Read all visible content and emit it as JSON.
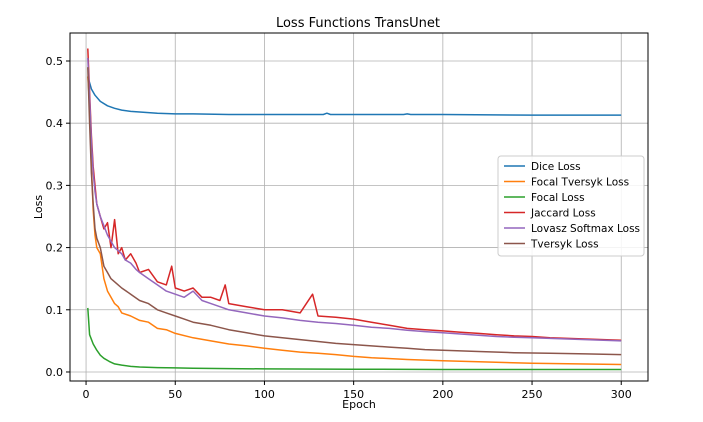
{
  "chart_data": {
    "type": "line",
    "title": "Loss Functions TransUnet",
    "xlabel": "Epoch",
    "ylabel": "Loss",
    "xlim": [
      -9,
      315
    ],
    "ylim": [
      -0.0145,
      0.545
    ],
    "xticks": [
      0,
      50,
      100,
      150,
      200,
      250,
      300
    ],
    "yticks": [
      0.0,
      0.1,
      0.2,
      0.3,
      0.4,
      0.5
    ],
    "ytick_labels": [
      "0.0",
      "0.1",
      "0.2",
      "0.3",
      "0.4",
      "0.5"
    ],
    "grid": true,
    "legend_position": "center-right",
    "series": [
      {
        "name": "Dice Loss",
        "color": "#1f77b4",
        "points": [
          [
            1,
            0.475
          ],
          [
            3,
            0.455
          ],
          [
            5,
            0.445
          ],
          [
            8,
            0.435
          ],
          [
            12,
            0.428
          ],
          [
            16,
            0.424
          ],
          [
            20,
            0.421
          ],
          [
            25,
            0.419
          ],
          [
            30,
            0.418
          ],
          [
            35,
            0.417
          ],
          [
            40,
            0.416
          ],
          [
            50,
            0.415
          ],
          [
            60,
            0.415
          ],
          [
            80,
            0.414
          ],
          [
            100,
            0.414
          ],
          [
            120,
            0.414
          ],
          [
            133,
            0.414
          ],
          [
            135,
            0.416
          ],
          [
            137,
            0.414
          ],
          [
            150,
            0.414
          ],
          [
            178,
            0.414
          ],
          [
            180,
            0.415
          ],
          [
            182,
            0.414
          ],
          [
            200,
            0.414
          ],
          [
            250,
            0.413
          ],
          [
            300,
            0.413
          ]
        ]
      },
      {
        "name": "Focal Tversyk Loss",
        "color": "#ff7f0e",
        "points": [
          [
            1,
            0.475
          ],
          [
            2,
            0.43
          ],
          [
            3,
            0.33
          ],
          [
            4,
            0.26
          ],
          [
            5,
            0.22
          ],
          [
            6,
            0.2
          ],
          [
            8,
            0.19
          ],
          [
            10,
            0.15
          ],
          [
            12,
            0.13
          ],
          [
            14,
            0.12
          ],
          [
            16,
            0.11
          ],
          [
            18,
            0.105
          ],
          [
            20,
            0.095
          ],
          [
            25,
            0.09
          ],
          [
            30,
            0.083
          ],
          [
            35,
            0.08
          ],
          [
            40,
            0.07
          ],
          [
            45,
            0.068
          ],
          [
            50,
            0.062
          ],
          [
            60,
            0.055
          ],
          [
            70,
            0.05
          ],
          [
            80,
            0.045
          ],
          [
            90,
            0.042
          ],
          [
            100,
            0.038
          ],
          [
            110,
            0.035
          ],
          [
            120,
            0.032
          ],
          [
            130,
            0.03
          ],
          [
            140,
            0.028
          ],
          [
            150,
            0.025
          ],
          [
            160,
            0.023
          ],
          [
            180,
            0.02
          ],
          [
            200,
            0.018
          ],
          [
            225,
            0.016
          ],
          [
            250,
            0.014
          ],
          [
            275,
            0.013
          ],
          [
            300,
            0.012
          ]
        ]
      },
      {
        "name": "Focal Loss",
        "color": "#2ca02c",
        "points": [
          [
            1,
            0.103
          ],
          [
            2,
            0.06
          ],
          [
            4,
            0.045
          ],
          [
            6,
            0.035
          ],
          [
            8,
            0.027
          ],
          [
            10,
            0.022
          ],
          [
            13,
            0.017
          ],
          [
            16,
            0.013
          ],
          [
            20,
            0.011
          ],
          [
            25,
            0.009
          ],
          [
            30,
            0.008
          ],
          [
            40,
            0.007
          ],
          [
            50,
            0.0065
          ],
          [
            60,
            0.006
          ],
          [
            80,
            0.0055
          ],
          [
            100,
            0.005
          ],
          [
            150,
            0.0045
          ],
          [
            200,
            0.004
          ],
          [
            250,
            0.004
          ],
          [
            300,
            0.004
          ]
        ]
      },
      {
        "name": "Jaccard Loss",
        "color": "#d62728",
        "points": [
          [
            1,
            0.52
          ],
          [
            2,
            0.45
          ],
          [
            3,
            0.38
          ],
          [
            4,
            0.33
          ],
          [
            5,
            0.3
          ],
          [
            6,
            0.27
          ],
          [
            8,
            0.25
          ],
          [
            10,
            0.23
          ],
          [
            12,
            0.24
          ],
          [
            14,
            0.2
          ],
          [
            16,
            0.245
          ],
          [
            18,
            0.19
          ],
          [
            20,
            0.2
          ],
          [
            22,
            0.18
          ],
          [
            25,
            0.19
          ],
          [
            28,
            0.175
          ],
          [
            30,
            0.16
          ],
          [
            35,
            0.165
          ],
          [
            40,
            0.145
          ],
          [
            45,
            0.14
          ],
          [
            48,
            0.17
          ],
          [
            50,
            0.135
          ],
          [
            55,
            0.13
          ],
          [
            60,
            0.135
          ],
          [
            65,
            0.12
          ],
          [
            70,
            0.12
          ],
          [
            75,
            0.115
          ],
          [
            78,
            0.14
          ],
          [
            80,
            0.11
          ],
          [
            90,
            0.105
          ],
          [
            100,
            0.1
          ],
          [
            110,
            0.1
          ],
          [
            120,
            0.095
          ],
          [
            127,
            0.125
          ],
          [
            130,
            0.09
          ],
          [
            140,
            0.088
          ],
          [
            150,
            0.085
          ],
          [
            160,
            0.08
          ],
          [
            170,
            0.075
          ],
          [
            180,
            0.07
          ],
          [
            190,
            0.068
          ],
          [
            200,
            0.066
          ],
          [
            210,
            0.064
          ],
          [
            220,
            0.062
          ],
          [
            230,
            0.06
          ],
          [
            240,
            0.058
          ],
          [
            250,
            0.057
          ],
          [
            260,
            0.055
          ],
          [
            270,
            0.054
          ],
          [
            280,
            0.053
          ],
          [
            290,
            0.052
          ],
          [
            300,
            0.051
          ]
        ]
      },
      {
        "name": "Lovasz Softmax Loss",
        "color": "#9467bd",
        "points": [
          [
            1,
            0.505
          ],
          [
            2,
            0.44
          ],
          [
            3,
            0.37
          ],
          [
            4,
            0.32
          ],
          [
            5,
            0.29
          ],
          [
            6,
            0.27
          ],
          [
            8,
            0.25
          ],
          [
            10,
            0.235
          ],
          [
            12,
            0.22
          ],
          [
            14,
            0.21
          ],
          [
            16,
            0.2
          ],
          [
            18,
            0.195
          ],
          [
            20,
            0.19
          ],
          [
            22,
            0.18
          ],
          [
            25,
            0.175
          ],
          [
            28,
            0.165
          ],
          [
            30,
            0.16
          ],
          [
            35,
            0.15
          ],
          [
            40,
            0.14
          ],
          [
            45,
            0.13
          ],
          [
            50,
            0.125
          ],
          [
            55,
            0.12
          ],
          [
            60,
            0.13
          ],
          [
            65,
            0.115
          ],
          [
            70,
            0.11
          ],
          [
            75,
            0.105
          ],
          [
            80,
            0.1
          ],
          [
            90,
            0.095
          ],
          [
            100,
            0.09
          ],
          [
            110,
            0.087
          ],
          [
            120,
            0.083
          ],
          [
            130,
            0.08
          ],
          [
            140,
            0.078
          ],
          [
            150,
            0.075
          ],
          [
            160,
            0.072
          ],
          [
            170,
            0.07
          ],
          [
            180,
            0.067
          ],
          [
            190,
            0.065
          ],
          [
            200,
            0.063
          ],
          [
            210,
            0.061
          ],
          [
            220,
            0.059
          ],
          [
            230,
            0.057
          ],
          [
            240,
            0.056
          ],
          [
            250,
            0.055
          ],
          [
            260,
            0.054
          ],
          [
            270,
            0.053
          ],
          [
            280,
            0.052
          ],
          [
            290,
            0.051
          ],
          [
            300,
            0.05
          ]
        ]
      },
      {
        "name": "Tversyk Loss",
        "color": "#8c564b",
        "points": [
          [
            1,
            0.49
          ],
          [
            2,
            0.4
          ],
          [
            3,
            0.32
          ],
          [
            4,
            0.27
          ],
          [
            5,
            0.23
          ],
          [
            6,
            0.215
          ],
          [
            8,
            0.2
          ],
          [
            10,
            0.17
          ],
          [
            12,
            0.16
          ],
          [
            14,
            0.15
          ],
          [
            16,
            0.145
          ],
          [
            18,
            0.14
          ],
          [
            20,
            0.135
          ],
          [
            25,
            0.125
          ],
          [
            30,
            0.115
          ],
          [
            35,
            0.11
          ],
          [
            40,
            0.1
          ],
          [
            45,
            0.095
          ],
          [
            50,
            0.09
          ],
          [
            55,
            0.085
          ],
          [
            60,
            0.08
          ],
          [
            70,
            0.075
          ],
          [
            80,
            0.068
          ],
          [
            90,
            0.063
          ],
          [
            100,
            0.058
          ],
          [
            110,
            0.055
          ],
          [
            120,
            0.052
          ],
          [
            130,
            0.049
          ],
          [
            140,
            0.046
          ],
          [
            150,
            0.044
          ],
          [
            160,
            0.042
          ],
          [
            170,
            0.04
          ],
          [
            180,
            0.038
          ],
          [
            190,
            0.036
          ],
          [
            200,
            0.035
          ],
          [
            220,
            0.033
          ],
          [
            240,
            0.031
          ],
          [
            260,
            0.03
          ],
          [
            280,
            0.029
          ],
          [
            300,
            0.028
          ]
        ]
      }
    ]
  }
}
